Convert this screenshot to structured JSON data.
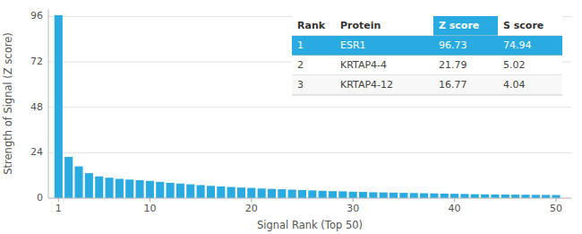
{
  "chart_data": {
    "type": "bar",
    "x": [
      1,
      2,
      3,
      4,
      5,
      6,
      7,
      8,
      9,
      10,
      11,
      12,
      13,
      14,
      15,
      16,
      17,
      18,
      19,
      20,
      21,
      22,
      23,
      24,
      25,
      26,
      27,
      28,
      29,
      30,
      31,
      32,
      33,
      34,
      35,
      36,
      37,
      38,
      39,
      40,
      41,
      42,
      43,
      44,
      45,
      46,
      47,
      48,
      49,
      50
    ],
    "values": [
      96.73,
      21.79,
      16.77,
      13.2,
      11.5,
      10.8,
      10.2,
      9.8,
      9.5,
      9.1,
      8.6,
      8.1,
      7.7,
      7.3,
      6.9,
      6.5,
      6.2,
      5.9,
      5.6,
      5.4,
      5.1,
      4.9,
      4.7,
      4.5,
      4.3,
      4.1,
      3.9,
      3.7,
      3.6,
      3.4,
      3.3,
      3.1,
      3.0,
      2.9,
      2.8,
      2.7,
      2.6,
      2.5,
      2.4,
      2.3,
      2.2,
      2.1,
      2.0,
      1.95,
      1.9,
      1.85,
      1.8,
      1.75,
      1.7,
      1.65
    ],
    "color": "#29ABE2",
    "xlabel": "Signal Rank (Top 50)",
    "ylabel": "Strength of Signal (Z score)",
    "xlim": [
      0.0,
      51.5
    ],
    "xticks": [
      1,
      10,
      20,
      30,
      40,
      50
    ],
    "ylim": [
      0,
      100
    ],
    "yticks": [
      0,
      24,
      48,
      72,
      96
    ],
    "grid": true,
    "table": {
      "columns": [
        "Rank",
        "Protein",
        "Z score",
        "S score"
      ],
      "rows": [
        [
          1,
          "ESR1",
          96.73,
          74.94
        ],
        [
          2,
          "KRTAP4-4",
          21.79,
          5.02
        ],
        [
          3,
          "KRTAP4-12",
          16.77,
          4.04
        ]
      ]
    }
  }
}
